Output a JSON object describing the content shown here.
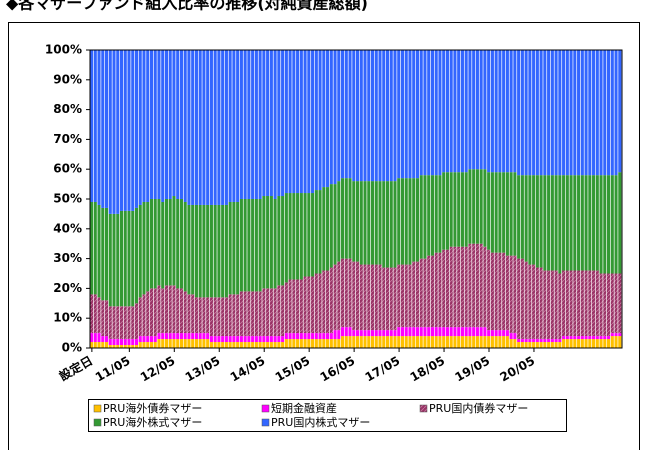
{
  "chart_data": {
    "type": "stacked-bar",
    "title": "◆各マザーファンド組入比率の推移(対純資産総額)",
    "categories": [
      "設定日",
      null,
      null,
      null,
      null,
      null,
      null,
      null,
      null,
      null,
      "11/05",
      null,
      null,
      null,
      null,
      null,
      null,
      null,
      null,
      null,
      null,
      null,
      "12/05",
      null,
      null,
      null,
      null,
      null,
      null,
      null,
      null,
      null,
      null,
      null,
      "13/05",
      null,
      null,
      null,
      null,
      null,
      null,
      null,
      null,
      null,
      null,
      null,
      "14/05",
      null,
      null,
      null,
      null,
      null,
      null,
      null,
      null,
      null,
      null,
      null,
      "15/05",
      null,
      null,
      null,
      null,
      null,
      null,
      null,
      null,
      null,
      null,
      null,
      "16/05",
      null,
      null,
      null,
      null,
      null,
      null,
      null,
      null,
      null,
      null,
      null,
      "17/05",
      null,
      null,
      null,
      null,
      null,
      null,
      null,
      null,
      null,
      null,
      null,
      "18/05",
      null,
      null,
      null,
      null,
      null,
      null,
      null,
      null,
      null,
      null,
      null,
      "19/05",
      null,
      null,
      null,
      null,
      null,
      null,
      null,
      null,
      null,
      null,
      null,
      "20/05",
      null,
      null,
      null,
      null,
      null,
      null,
      null,
      null,
      null,
      null,
      null,
      null,
      null,
      null,
      null,
      null,
      null,
      null,
      null,
      null,
      null,
      null,
      null
    ],
    "ylim": [
      0,
      100
    ],
    "yticks": [
      {
        "value": 0,
        "label": "0%"
      },
      {
        "value": 10,
        "label": "10%"
      },
      {
        "value": 20,
        "label": "20%"
      },
      {
        "value": 30,
        "label": "30%"
      },
      {
        "value": 40,
        "label": "40%"
      },
      {
        "value": 50,
        "label": "50%"
      },
      {
        "value": 60,
        "label": "60%"
      },
      {
        "value": 70,
        "label": "70%"
      },
      {
        "value": 80,
        "label": "80%"
      },
      {
        "value": 90,
        "label": "90%"
      },
      {
        "value": 100,
        "label": "100%"
      }
    ],
    "series": [
      {
        "name": "PRU海外債券マザー",
        "color": "#ffc000",
        "values": [
          2,
          2,
          2,
          2,
          2,
          1,
          1,
          1,
          1,
          1,
          1,
          1,
          1,
          2,
          2,
          2,
          2,
          2,
          3,
          3,
          3,
          3,
          3,
          3,
          3,
          3,
          3,
          3,
          3,
          3,
          3,
          3,
          2,
          2,
          2,
          2,
          2,
          2,
          2,
          2,
          2,
          2,
          2,
          2,
          2,
          2,
          2,
          2,
          2,
          2,
          2,
          2,
          3,
          3,
          3,
          3,
          3,
          3,
          3,
          3,
          3,
          3,
          3,
          3,
          3,
          3,
          3,
          4,
          4,
          4,
          4,
          4,
          4,
          4,
          4,
          4,
          4,
          4,
          4,
          4,
          4,
          4,
          4,
          4,
          4,
          4,
          4,
          4,
          4,
          4,
          4,
          4,
          4,
          4,
          4,
          4,
          4,
          4,
          4,
          4,
          4,
          4,
          4,
          4,
          4,
          4,
          4,
          4,
          4,
          4,
          4,
          4,
          3,
          3,
          2,
          2,
          2,
          2,
          2,
          2,
          2,
          2,
          2,
          2,
          2,
          2,
          3,
          3,
          3,
          3,
          3,
          3,
          3,
          3,
          3,
          3,
          3,
          3,
          3,
          4,
          4,
          4
        ]
      },
      {
        "name": "短期金融資産",
        "color": "#ff00ff",
        "values": [
          3,
          3,
          3,
          2,
          2,
          2,
          2,
          2,
          2,
          2,
          2,
          2,
          2,
          2,
          2,
          2,
          2,
          2,
          2,
          2,
          2,
          2,
          2,
          2,
          2,
          2,
          2,
          2,
          2,
          2,
          2,
          2,
          2,
          2,
          2,
          2,
          2,
          2,
          2,
          2,
          2,
          2,
          2,
          2,
          2,
          2,
          2,
          2,
          2,
          2,
          2,
          2,
          2,
          2,
          2,
          2,
          2,
          2,
          2,
          2,
          2,
          2,
          2,
          2,
          2,
          3,
          3,
          3,
          3,
          3,
          2,
          2,
          2,
          2,
          2,
          2,
          2,
          2,
          2,
          2,
          2,
          2,
          3,
          3,
          3,
          3,
          3,
          3,
          3,
          3,
          3,
          3,
          3,
          3,
          3,
          3,
          3,
          3,
          3,
          3,
          3,
          3,
          3,
          3,
          3,
          3,
          2,
          2,
          2,
          2,
          2,
          2,
          2,
          2,
          1,
          1,
          1,
          1,
          1,
          1,
          1,
          1,
          1,
          1,
          1,
          1,
          1,
          1,
          1,
          1,
          1,
          1,
          1,
          1,
          1,
          1,
          1,
          1,
          1,
          1,
          1,
          1
        ]
      },
      {
        "name": "PRU国内債券マザー",
        "color": "#993366",
        "values": [
          13,
          13,
          12,
          12,
          12,
          11,
          11,
          11,
          11,
          11,
          11,
          11,
          12,
          13,
          14,
          15,
          16,
          16,
          16,
          15,
          16,
          16,
          16,
          15,
          15,
          14,
          13,
          13,
          12,
          12,
          12,
          12,
          13,
          13,
          13,
          13,
          13,
          14,
          14,
          14,
          15,
          15,
          15,
          15,
          15,
          15,
          16,
          16,
          16,
          16,
          17,
          17,
          17,
          18,
          18,
          18,
          18,
          19,
          19,
          19,
          20,
          20,
          21,
          21,
          22,
          22,
          23,
          23,
          23,
          23,
          23,
          23,
          22,
          22,
          22,
          22,
          22,
          22,
          21,
          21,
          21,
          21,
          21,
          21,
          21,
          21,
          22,
          22,
          23,
          23,
          24,
          24,
          25,
          25,
          26,
          26,
          27,
          27,
          27,
          27,
          27,
          28,
          28,
          28,
          28,
          27,
          27,
          26,
          26,
          26,
          26,
          25,
          26,
          26,
          27,
          27,
          26,
          25,
          25,
          24,
          24,
          23,
          23,
          23,
          23,
          22,
          22,
          22,
          22,
          22,
          22,
          22,
          22,
          22,
          22,
          22,
          21,
          21,
          21,
          20,
          20,
          20
        ]
      },
      {
        "name": "PRU海外株式マザー",
        "color": "#339933",
        "values": [
          31,
          31,
          31,
          31,
          31,
          31,
          31,
          31,
          32,
          32,
          32,
          32,
          32,
          31,
          31,
          30,
          30,
          30,
          29,
          29,
          29,
          29,
          30,
          30,
          30,
          30,
          30,
          30,
          31,
          31,
          31,
          31,
          31,
          31,
          31,
          31,
          31,
          31,
          31,
          31,
          31,
          31,
          31,
          31,
          31,
          31,
          31,
          31,
          31,
          30,
          30,
          30,
          30,
          29,
          29,
          29,
          29,
          28,
          28,
          28,
          28,
          28,
          28,
          28,
          28,
          27,
          27,
          27,
          27,
          27,
          27,
          27,
          28,
          28,
          28,
          28,
          28,
          28,
          29,
          29,
          29,
          29,
          29,
          29,
          29,
          29,
          28,
          28,
          28,
          28,
          27,
          27,
          26,
          26,
          26,
          26,
          25,
          25,
          25,
          25,
          25,
          25,
          25,
          25,
          25,
          26,
          26,
          27,
          27,
          27,
          27,
          28,
          28,
          28,
          28,
          28,
          29,
          30,
          30,
          31,
          31,
          32,
          32,
          32,
          32,
          33,
          32,
          32,
          32,
          32,
          32,
          32,
          32,
          32,
          32,
          32,
          33,
          33,
          33,
          33,
          33,
          34
        ]
      },
      {
        "name": "PRU国内株式マザー",
        "color": "#3366ff",
        "values": [
          51,
          51,
          52,
          53,
          53,
          55,
          55,
          55,
          54,
          54,
          54,
          54,
          53,
          52,
          51,
          51,
          50,
          50,
          50,
          51,
          50,
          50,
          49,
          50,
          50,
          51,
          52,
          52,
          52,
          52,
          52,
          52,
          52,
          52,
          52,
          52,
          52,
          51,
          51,
          51,
          50,
          50,
          50,
          50,
          50,
          50,
          49,
          49,
          49,
          50,
          49,
          49,
          48,
          48,
          48,
          48,
          48,
          48,
          48,
          48,
          47,
          47,
          46,
          46,
          45,
          45,
          44,
          43,
          43,
          43,
          44,
          44,
          44,
          44,
          44,
          44,
          44,
          44,
          44,
          44,
          44,
          44,
          43,
          43,
          43,
          43,
          43,
          43,
          42,
          42,
          42,
          42,
          42,
          42,
          41,
          41,
          41,
          41,
          41,
          41,
          41,
          40,
          40,
          40,
          40,
          40,
          41,
          41,
          41,
          41,
          41,
          41,
          41,
          41,
          42,
          42,
          42,
          42,
          42,
          42,
          42,
          42,
          42,
          42,
          42,
          42,
          42,
          42,
          42,
          42,
          42,
          42,
          42,
          42,
          42,
          42,
          42,
          42,
          42,
          42,
          42,
          41
        ]
      }
    ]
  }
}
